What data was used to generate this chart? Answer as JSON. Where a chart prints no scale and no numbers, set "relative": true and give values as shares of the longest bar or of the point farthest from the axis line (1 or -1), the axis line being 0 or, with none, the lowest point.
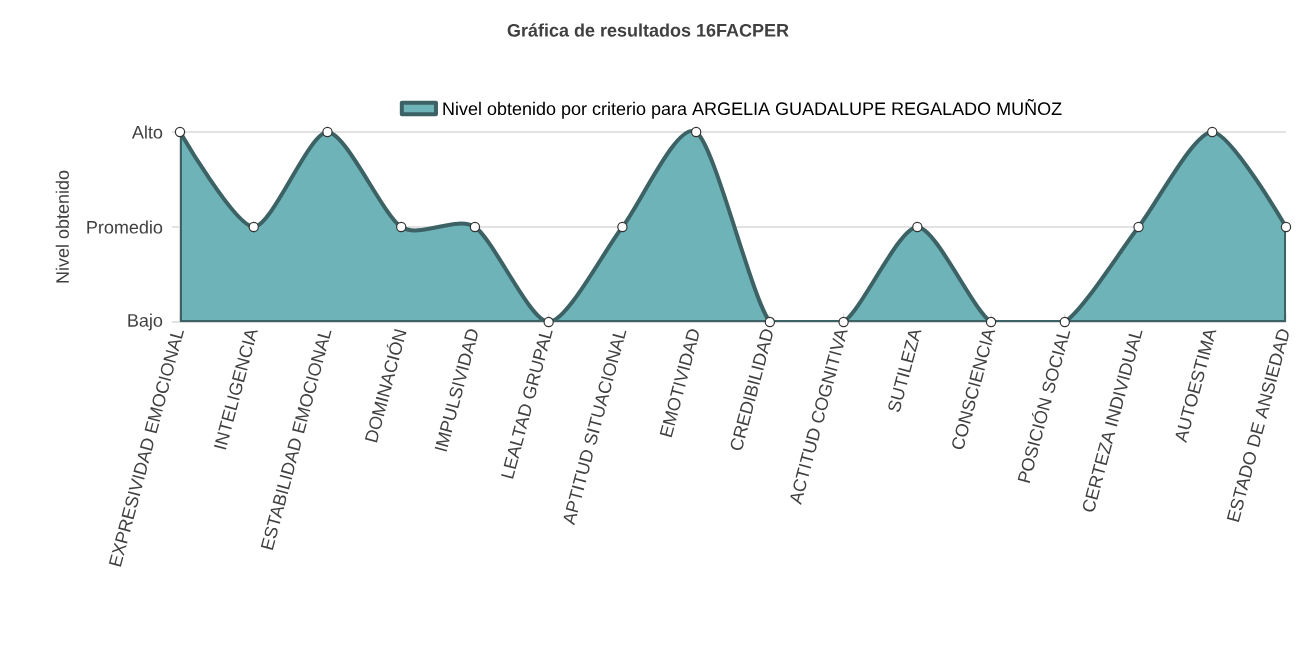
{
  "chart_data": {
    "type": "area",
    "title": "Gráfica de resultados 16FACPER",
    "ylabel": "Nivel obtenido",
    "relative": true,
    "categories": [
      "EXPRESIVIDAD EMOCIONAL",
      "INTELIGENCIA",
      "ESTABILIDAD EMOCIONAL",
      "DOMINACIÓN",
      "IMPULSIVIDAD",
      "LEALTAD GRUPAL",
      "APTITUD SITUACIONAL",
      "EMOTIVIDAD",
      "CREDIBILIDAD",
      "ACTITUD COGNITIVA",
      "SUTILEZA",
      "CONSCIENCIA",
      "POSICIÓN SOCIAL",
      "CERTEZA INDIVIDUAL",
      "AUTOESTIMA",
      "ESTADO DE ANSIEDAD"
    ],
    "series": [
      {
        "name": "Nivel obtenido por criterio para ARGELIA GUADALUPE REGALADO MUÑOZ",
        "color": "#6db3b7",
        "values": [
          1,
          0.5,
          1,
          0.5,
          0.5,
          0,
          0.5,
          1,
          0,
          0,
          0.5,
          0,
          0,
          0.5,
          1,
          0.5
        ]
      }
    ],
    "ref_lines": [
      {
        "axis": "y",
        "value": 0,
        "label": "Bajo",
        "color": "#d9d9d9"
      },
      {
        "axis": "y",
        "value": 0.5,
        "label": "Promedio",
        "color": "#d9d9d9"
      },
      {
        "axis": "y",
        "value": 1,
        "label": "Alto",
        "color": "#d9d9d9"
      }
    ],
    "legend": "top",
    "marker": "circle",
    "line_style": "solid"
  }
}
